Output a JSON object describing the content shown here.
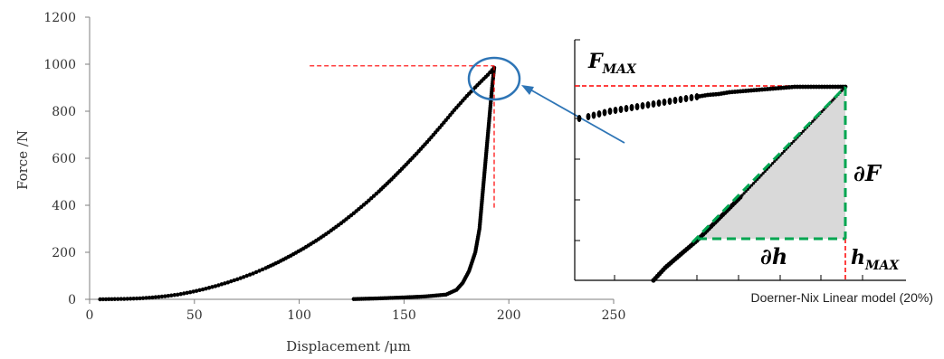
{
  "chart_data": [
    {
      "type": "scatter",
      "xlabel": "Displacement /μm",
      "ylabel": "Force /N",
      "xlim": [
        0,
        250
      ],
      "ylim": [
        0,
        1200
      ],
      "xticks": [
        "0",
        "50",
        "100",
        "150",
        "200",
        "250"
      ],
      "yticks": [
        "0",
        "200",
        "400",
        "600",
        "800",
        "1000",
        "1200"
      ],
      "marker_color": "#000000",
      "series": [
        {
          "points": [
            [
              5,
              0
            ],
            [
              12,
              1
            ],
            [
              18,
              2
            ],
            [
              24,
              4
            ],
            [
              30,
              8
            ],
            [
              36,
              13
            ],
            [
              42,
              20
            ],
            [
              48,
              30
            ],
            [
              54,
              42
            ],
            [
              60,
              56
            ],
            [
              66,
              72
            ],
            [
              72,
              90
            ],
            [
              78,
              110
            ],
            [
              84,
              133
            ],
            [
              90,
              158
            ],
            [
              96,
              186
            ],
            [
              102,
              216
            ],
            [
              108,
              249
            ],
            [
              114,
              285
            ],
            [
              120,
              324
            ],
            [
              126,
              366
            ],
            [
              132,
              411
            ],
            [
              138,
              459
            ],
            [
              144,
              510
            ],
            [
              150,
              564
            ],
            [
              156,
              620
            ],
            [
              162,
              679
            ],
            [
              168,
              741
            ],
            [
              174,
              805
            ],
            [
              180,
              865
            ],
            [
              186,
              920
            ],
            [
              190,
              955
            ],
            [
              193,
              985
            ]
          ]
        },
        {
          "points": [
            [
              193,
              985
            ],
            [
              192,
              900
            ],
            [
              191,
              800
            ],
            [
              190,
              700
            ],
            [
              189,
              600
            ],
            [
              188,
              500
            ],
            [
              187,
              400
            ],
            [
              186,
              300
            ],
            [
              184,
              200
            ],
            [
              181,
              120
            ],
            [
              178,
              70
            ],
            [
              175,
              40
            ],
            [
              170,
              20
            ],
            [
              160,
              12
            ],
            [
              150,
              8
            ],
            [
              138,
              4
            ],
            [
              126,
              1
            ]
          ]
        }
      ],
      "annotations": {
        "fmax_reference_line": {
          "x": [
            105,
            193
          ],
          "y": 993,
          "color": "#ff0000",
          "style": "dashed"
        },
        "hmax_reference_line": {
          "x": 193,
          "y": [
            390,
            993
          ],
          "color": "#ff0000",
          "style": "dashed"
        },
        "highlight_circle_color": "#2e75b6",
        "arrow_color": "#2e75b6"
      }
    },
    {
      "type": "scatter",
      "caption": "Doerner-Nix Linear model (20%)",
      "labels": {
        "fmax_main": "F",
        "fmax_sub": "MAX",
        "dF": "∂F",
        "dh": "∂h",
        "hmax_main": "h",
        "hmax_sub": "MAX"
      },
      "colors": {
        "max_lines": "#ff0000",
        "triangle_edges": "#00a651",
        "triangle_fill": "#d9d9d9",
        "markers": "#000000"
      }
    }
  ]
}
